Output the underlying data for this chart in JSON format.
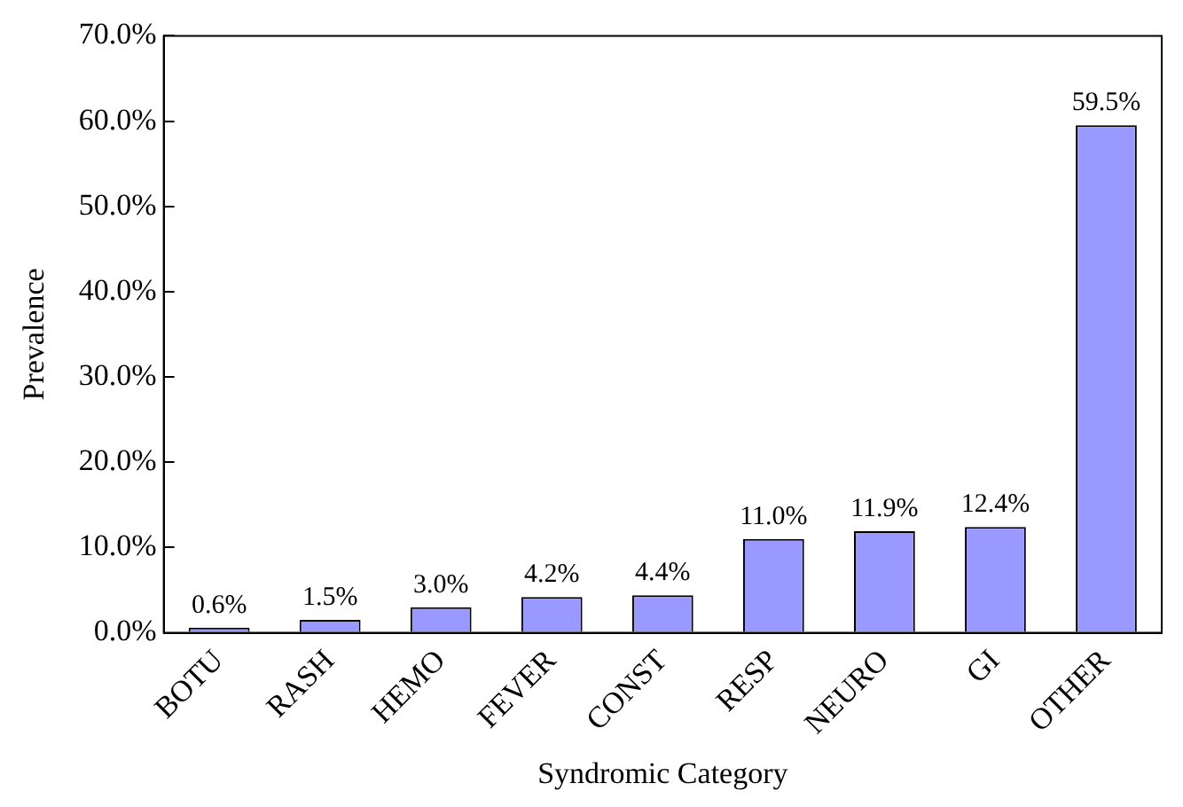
{
  "chart_data": {
    "type": "bar",
    "xlabel": "Syndromic Category",
    "ylabel": "Prevalence",
    "categories": [
      "BOTU",
      "RASH",
      "HEMO",
      "FEVER",
      "CONST",
      "RESP",
      "NEURO",
      "GI",
      "OTHER"
    ],
    "values": [
      0.6,
      1.5,
      3.0,
      4.2,
      4.4,
      11.0,
      11.9,
      12.4,
      59.5
    ],
    "value_labels": [
      "0.6%",
      "1.5%",
      "3.0%",
      "4.2%",
      "4.4%",
      "11.0%",
      "11.9%",
      "12.4%",
      "59.5%"
    ],
    "color": "#9999ff",
    "ylim": [
      0,
      70
    ],
    "yticks": [
      {
        "value": 0,
        "label": "0.0%"
      },
      {
        "value": 10,
        "label": "10.0%"
      },
      {
        "value": 20,
        "label": "20.0%"
      },
      {
        "value": 30,
        "label": "30.0%"
      },
      {
        "value": 40,
        "label": "40.0%"
      },
      {
        "value": 50,
        "label": "50.0%"
      },
      {
        "value": 60,
        "label": "60.0%"
      },
      {
        "value": 70,
        "label": "70.0%"
      }
    ],
    "grid": false,
    "legend": false
  }
}
